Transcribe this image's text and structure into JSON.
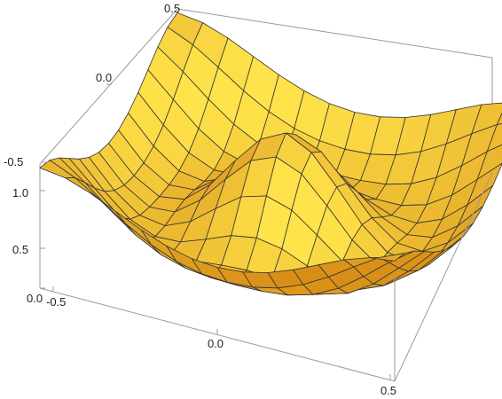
{
  "chart_data": {
    "type": "surface3d",
    "title": "",
    "xlabel": "",
    "ylabel": "",
    "zlabel": "",
    "x_range": [
      -0.5,
      0.5
    ],
    "y_range": [
      -0.5,
      0.5
    ],
    "z_range": [
      0.0,
      1.25
    ],
    "x_ticks": [
      "-0.5",
      "0.0",
      "0.5"
    ],
    "y_ticks": [
      "-0.5",
      "0.0",
      "0.5"
    ],
    "z_ticks": [
      "0.0",
      "0.5",
      "1.0"
    ],
    "mesh": "15x15 grid lines",
    "box": true,
    "colors": {
      "surface_light": "#ffe34a",
      "surface_dark": "#c86a00",
      "mesh": "#333333",
      "box": "#9a9a9a"
    },
    "surface_description": "radially oscillating surface: high corners (~1.2), central peak (~1.0), trough ring (~0.15)"
  }
}
